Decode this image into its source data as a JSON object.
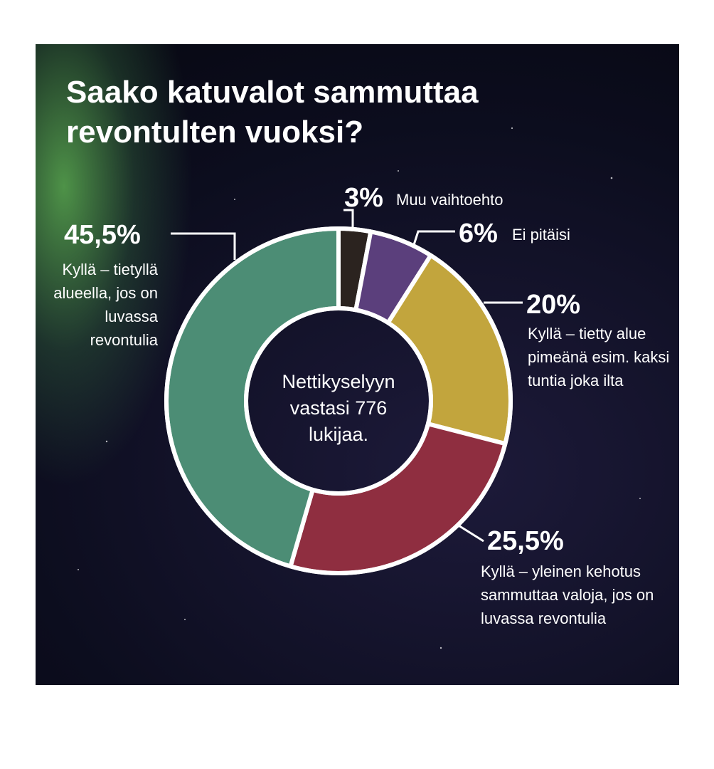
{
  "chart_data": {
    "type": "donut",
    "title": "Saako katuvalot sammuttaa revontulten vuoksi?",
    "annotation": "Nettikyselyyn vastasi 776 lukijaa.",
    "categories": [
      "Muu vaihtoehto",
      "Ei pitäisi",
      "Kyllä – tietty alue pimeänä esim. kaksi tuntia joka ilta",
      "Kyllä – yleinen kehotus sammuttaa valoja, jos on luvassa revontulia",
      "Kyllä – tietyllä alueella, jos on luvassa revontulia"
    ],
    "values": [
      3,
      6,
      20,
      25.5,
      45.5
    ],
    "value_labels": [
      "3%",
      "6%",
      "20%",
      "25,5%",
      "45,5%"
    ],
    "colors": [
      "#2b231f",
      "#5b3f7c",
      "#c2a53d",
      "#8f2e40",
      "#4c8d75"
    ]
  }
}
